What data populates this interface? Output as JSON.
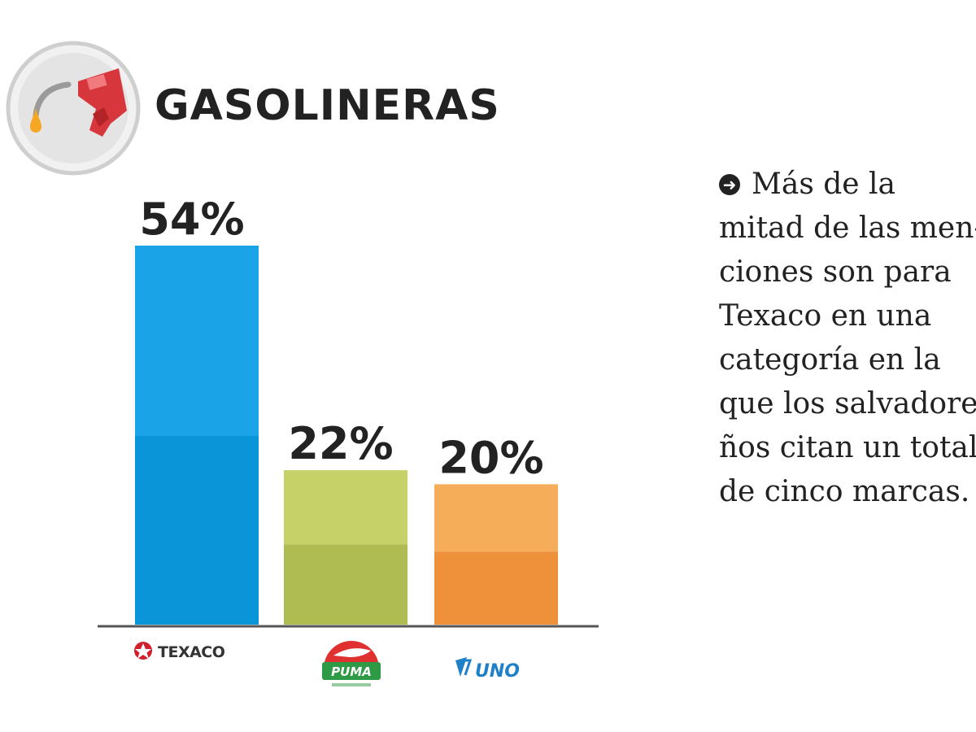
{
  "header": {
    "title": "GASOLINERAS",
    "icon": "fuel-nozzle-icon"
  },
  "note": {
    "icon": "arrow-right-circle-icon",
    "lines": [
      "Más de la",
      "mitad de las men-",
      "ciones  son para",
      "Texaco en una",
      "categoría en la",
      "que los salvadore-",
      "ños citan un total",
      "de cinco marcas."
    ]
  },
  "chart_data": {
    "type": "bar",
    "categories": [
      "TEXACO",
      "PUMA",
      "UNO"
    ],
    "values": [
      54,
      22,
      20
    ],
    "value_labels": [
      "54%",
      "22%",
      "20%"
    ],
    "ylim": [
      0,
      54
    ],
    "colors": [
      {
        "top": "#1aa3e6",
        "bottom": "#0a95d8"
      },
      {
        "top": "#c6d267",
        "bottom": "#aebc52"
      },
      {
        "top": "#f5ad5a",
        "bottom": "#ef913b"
      }
    ],
    "legend": "none",
    "grid": false,
    "axis_color": "#555555"
  }
}
